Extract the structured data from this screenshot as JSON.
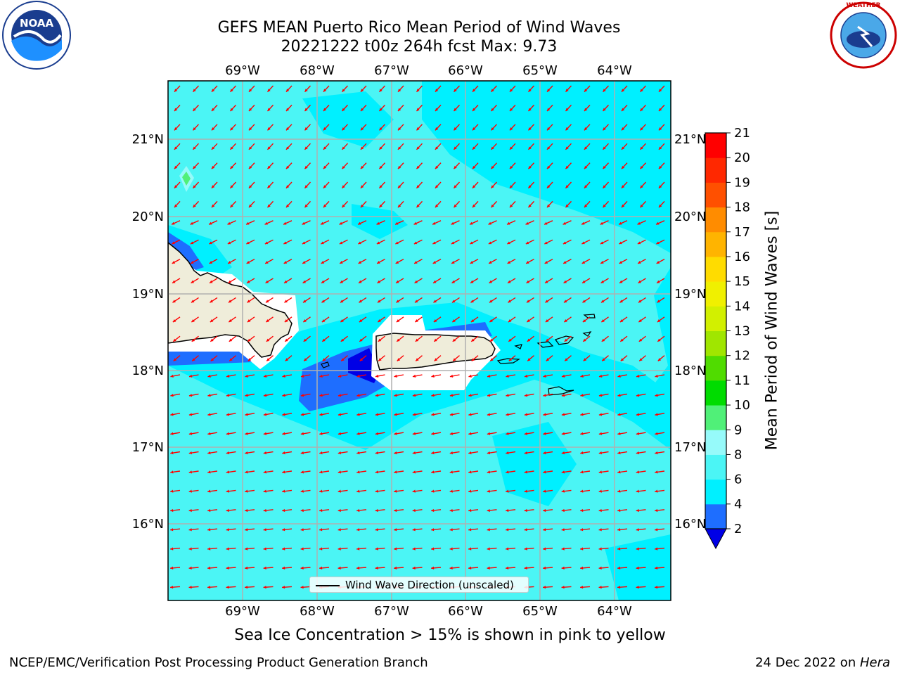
{
  "title": {
    "line1": "GEFS MEAN Puerto Rico Mean Period of Wind Waves",
    "line2": "20221222 t00z 264h fcst   Max: 9.73"
  },
  "axes": {
    "lon_labels": [
      "69°W",
      "68°W",
      "67°W",
      "66°W",
      "65°W",
      "64°W"
    ],
    "lat_labels": [
      "21°N",
      "20°N",
      "19°N",
      "18°N",
      "17°N",
      "16°N"
    ]
  },
  "colorbar": {
    "label": "Mean Period of Wind Waves [s]",
    "ticks": [
      "2",
      "4",
      "6",
      "8",
      "9",
      "10",
      "11",
      "12",
      "13",
      "14",
      "15",
      "16",
      "17",
      "18",
      "19",
      "20",
      "21"
    ],
    "colors": [
      "#0000e6",
      "#1e6eff",
      "#00f0ff",
      "#4bf5f5",
      "#96fafa",
      "#50f078",
      "#00dc00",
      "#50dc00",
      "#a0e600",
      "#d2f000",
      "#f0f000",
      "#ffdc00",
      "#ffb400",
      "#ff8c00",
      "#ff5000",
      "#ff2800",
      "#ff0000"
    ]
  },
  "legend": {
    "label": "Wind Wave Direction (unscaled)"
  },
  "logos": {
    "noaa": "NOAA",
    "nws": "NATIONAL WEATHER SERVICE"
  },
  "footer": {
    "sea_ice": "Sea Ice Concentration > 15% is shown in pink to yellow",
    "left": "NCEP/EMC/Verification Post Processing Product Generation Branch",
    "right_date": "24 Dec 2022 on ",
    "right_host": "Hera"
  }
}
